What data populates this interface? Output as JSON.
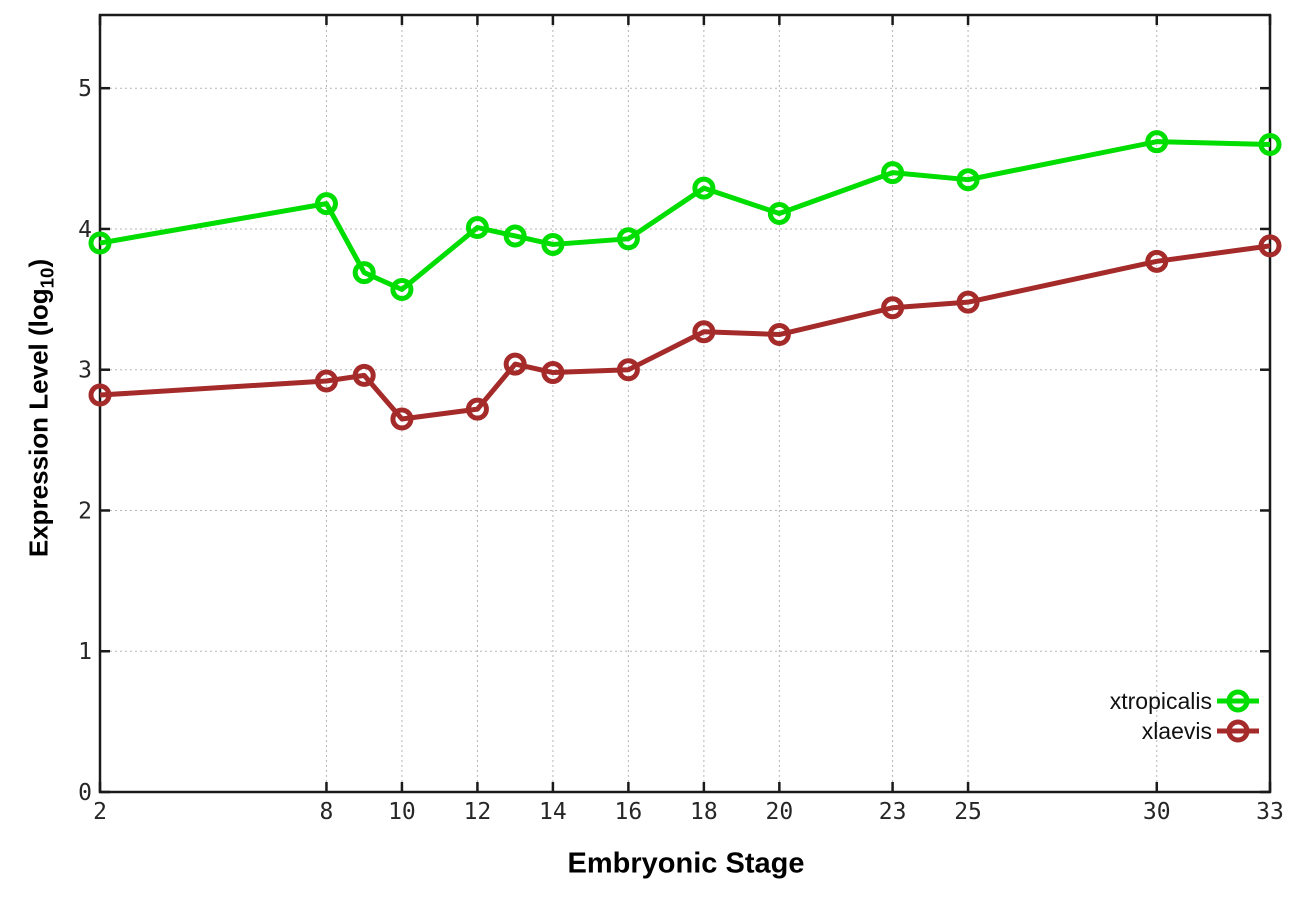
{
  "chart_data": {
    "type": "line",
    "title": "",
    "xlabel": "Embryonic Stage",
    "ylabel": "Expression Level (log10)",
    "ylabel_parts": {
      "prefix": "Expression Level (log",
      "sub": "10",
      "suffix": ")"
    },
    "x": [
      2,
      8,
      9,
      10,
      12,
      13,
      14,
      16,
      18,
      20,
      23,
      25,
      30,
      33
    ],
    "series": [
      {
        "name": "xtropicalis",
        "color": "#00dd00",
        "values": [
          3.9,
          4.18,
          3.69,
          3.57,
          4.01,
          3.95,
          3.89,
          3.93,
          4.29,
          4.11,
          4.4,
          4.35,
          4.62,
          4.6
        ]
      },
      {
        "name": "xlaevis",
        "color": "#a52a2a",
        "values": [
          2.82,
          2.92,
          2.96,
          2.65,
          2.72,
          3.04,
          2.98,
          3.0,
          3.27,
          3.25,
          3.44,
          3.48,
          3.77,
          3.88
        ]
      }
    ],
    "x_ticks": [
      2,
      8,
      10,
      12,
      14,
      16,
      18,
      20,
      23,
      25,
      30,
      33
    ],
    "y_ticks": [
      0,
      1,
      2,
      3,
      4,
      5
    ],
    "xlim": [
      2,
      33
    ],
    "ylim": [
      0,
      5.52
    ],
    "grid": true,
    "legend_position": "inside-right",
    "axis_color": "#1a1a1a",
    "grid_color": "#b5b5b5",
    "tick_label_color": "#262626"
  }
}
